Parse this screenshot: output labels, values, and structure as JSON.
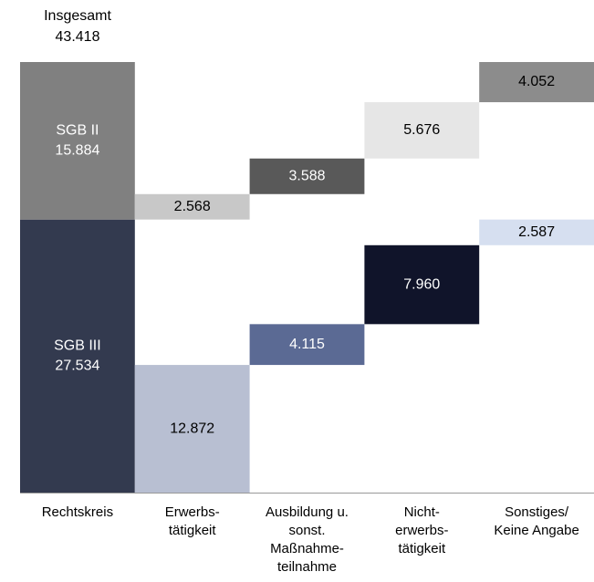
{
  "chart_data": {
    "type": "waterfall",
    "total": {
      "label": "Insgesamt",
      "value": 43418,
      "value_label": "43.418"
    },
    "categories": [
      "Rechtskreis",
      "Erwerbs-\ntätigkeit",
      "Ausbildung u.\nsonst.\nMaßnahme-\nteilnahme",
      "Nicht-\nerwerbs-\ntätigkeit",
      "Sonstiges/\nKeine Angabe"
    ],
    "series": [
      {
        "name": "SGB III",
        "colors": [
          "#333a4f",
          "#b8bfd2",
          "#5b6a94",
          "#10142a",
          "#d6dff0"
        ],
        "values": [
          27534,
          12872,
          4115,
          7960,
          2587
        ],
        "value_labels": [
          "27.534",
          "12.872",
          "4.115",
          "7.960",
          "2.587"
        ]
      },
      {
        "name": "SGB II",
        "colors": [
          "#808080",
          "#c8c8c8",
          "#595959",
          "#e6e6e6",
          "#8c8c8c"
        ],
        "values": [
          15884,
          2568,
          3588,
          5676,
          4052
        ],
        "value_labels": [
          "15.884",
          "2.568",
          "3.588",
          "5.676",
          "4.052"
        ]
      }
    ]
  }
}
